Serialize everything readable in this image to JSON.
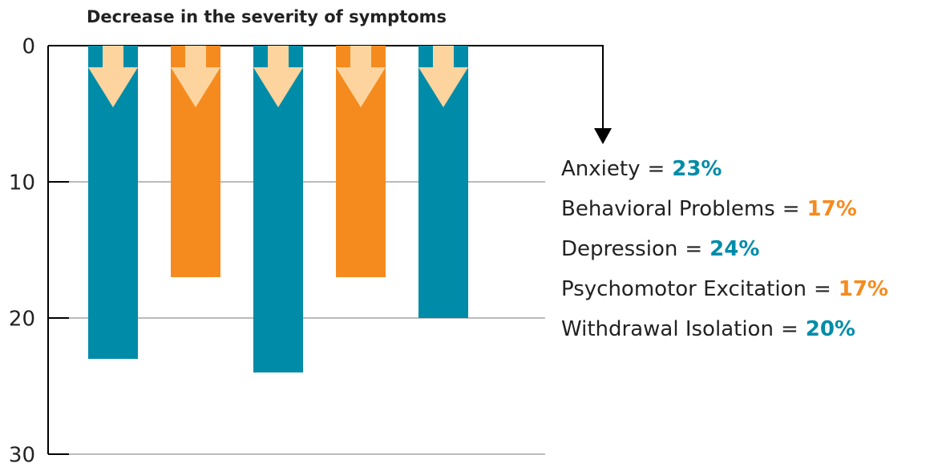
{
  "chart_data": {
    "type": "bar",
    "title": "Decrease in the severity of symptoms",
    "categories": [
      "Anxiety",
      "Behavioral Problems",
      "Depression",
      "Psychomotor Excitation",
      "Withdrawal Isolation"
    ],
    "values": [
      23,
      17,
      24,
      17,
      20
    ],
    "value_labels": [
      "23%",
      "17%",
      "24%",
      "17%",
      "20%"
    ],
    "colors": [
      "#008ca8",
      "#f58b1f",
      "#008ca8",
      "#f58b1f",
      "#008ca8"
    ],
    "separator": "=",
    "inverted": true,
    "ylim": [
      0,
      30
    ],
    "yticks": [
      0,
      10,
      20,
      30
    ],
    "grid": true
  }
}
